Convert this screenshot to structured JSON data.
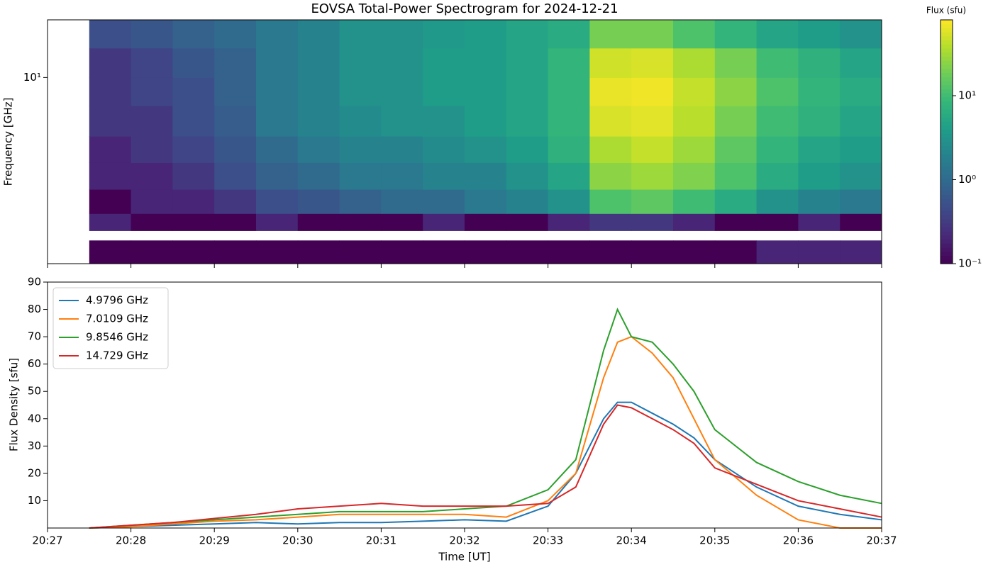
{
  "chart_data": [
    {
      "type": "heatmap",
      "title": "EOVSA Total-Power Spectrogram for 2024-12-21",
      "ylabel": "Frequency [GHz]",
      "ylog": true,
      "ylim": [
        1.5,
        18
      ],
      "yticks": [
        {
          "value": 10,
          "label": "10¹"
        }
      ],
      "xlim": [
        "20:27",
        "20:37"
      ],
      "xticks": [
        "20:27",
        "20:28",
        "20:29",
        "20:30",
        "20:31",
        "20:32",
        "20:33",
        "20:34",
        "20:35",
        "20:36",
        "20:37"
      ],
      "x_edges": [
        "20:27:30",
        "20:28:00",
        "20:28:30",
        "20:29:00",
        "20:29:30",
        "20:30:00",
        "20:30:30",
        "20:31:00",
        "20:31:30",
        "20:32:00",
        "20:32:30",
        "20:33:00",
        "20:33:30",
        "20:34:00",
        "20:34:30",
        "20:35:00",
        "20:35:30",
        "20:36:00",
        "20:36:30",
        "20:37:00"
      ],
      "y_edges": [
        1.5,
        1.9,
        2.1,
        2.5,
        3.2,
        4.2,
        5.5,
        7.5,
        10,
        13.5,
        18
      ],
      "values": [
        [
          0.1,
          0.1,
          0.1,
          0.1,
          0.1,
          0.1,
          0.1,
          0.1,
          0.1,
          0.1,
          0.1,
          0.1,
          0.1,
          0.1,
          0.1,
          0.1,
          0.2,
          0.2,
          0.2
        ],
        [
          null,
          null,
          null,
          null,
          null,
          null,
          null,
          null,
          null,
          null,
          null,
          null,
          null,
          null,
          null,
          null,
          null,
          null,
          null
        ],
        [
          0.2,
          0.1,
          0.1,
          0.1,
          0.2,
          0.1,
          0.1,
          0.1,
          0.2,
          0.1,
          0.1,
          0.2,
          0.3,
          0.3,
          0.2,
          0.1,
          0.1,
          0.2,
          0.1
        ],
        [
          0.1,
          0.2,
          0.2,
          0.3,
          0.5,
          0.6,
          0.8,
          1,
          1,
          1.5,
          2,
          3,
          12,
          15,
          10,
          6,
          3,
          2,
          1.5
        ],
        [
          0.2,
          0.2,
          0.3,
          0.5,
          0.8,
          1,
          1.5,
          1.5,
          2,
          2,
          3,
          5,
          25,
          30,
          22,
          12,
          6,
          4,
          3
        ],
        [
          0.2,
          0.3,
          0.4,
          0.6,
          1,
          1.5,
          2,
          2,
          2.5,
          3,
          4,
          7,
          35,
          45,
          30,
          15,
          8,
          5,
          4
        ],
        [
          0.3,
          0.3,
          0.5,
          0.7,
          1.5,
          2,
          2.5,
          3,
          3,
          4,
          5,
          8,
          55,
          60,
          40,
          20,
          10,
          7,
          5
        ],
        [
          0.3,
          0.4,
          0.5,
          0.8,
          1.5,
          2,
          3,
          3,
          4,
          4,
          5,
          8,
          65,
          70,
          45,
          25,
          12,
          8,
          6
        ],
        [
          0.3,
          0.4,
          0.6,
          0.8,
          1.5,
          2,
          3,
          3,
          4,
          4,
          5,
          8,
          50,
          55,
          35,
          20,
          10,
          7,
          5
        ],
        [
          0.5,
          0.6,
          0.8,
          1,
          1.5,
          2,
          3,
          3,
          3.5,
          4,
          5,
          6,
          20,
          20,
          12,
          8,
          5,
          4,
          3
        ]
      ],
      "colormap": "viridis",
      "colorbar_label": "Flux (sfu)",
      "clim": [
        0.1,
        80
      ],
      "cticks": [
        {
          "value": 0.1,
          "label": "10⁻¹"
        },
        {
          "value": 1,
          "label": "10⁰"
        },
        {
          "value": 10,
          "label": "10¹"
        }
      ]
    },
    {
      "type": "line",
      "xlabel": "Time [UT]",
      "ylabel": "Flux Density [sfu]",
      "xlim": [
        "20:27",
        "20:37"
      ],
      "xticks": [
        "20:27",
        "20:28",
        "20:29",
        "20:30",
        "20:31",
        "20:32",
        "20:33",
        "20:34",
        "20:35",
        "20:36",
        "20:37"
      ],
      "ylim": [
        0,
        90
      ],
      "yticks": [
        10,
        20,
        30,
        40,
        50,
        60,
        70,
        80,
        90
      ],
      "legend": "upper left",
      "x": [
        "20:27:30",
        "20:28:00",
        "20:28:30",
        "20:29:00",
        "20:29:30",
        "20:30:00",
        "20:30:30",
        "20:31:00",
        "20:31:30",
        "20:32:00",
        "20:32:30",
        "20:33:00",
        "20:33:20",
        "20:33:40",
        "20:33:50",
        "20:34:00",
        "20:34:15",
        "20:34:30",
        "20:34:45",
        "20:35:00",
        "20:35:30",
        "20:36:00",
        "20:36:30",
        "20:37:00"
      ],
      "series": [
        {
          "name": "4.9796 GHz",
          "color": "#1f77b4",
          "values": [
            0,
            0.5,
            1,
            1.5,
            2,
            1.5,
            2,
            2,
            2.5,
            3,
            2.5,
            8,
            20,
            40,
            46,
            46,
            42,
            38,
            33,
            25,
            15,
            8,
            5,
            3
          ]
        },
        {
          "name": "7.0109 GHz",
          "color": "#ff7f0e",
          "values": [
            0,
            0.5,
            1.5,
            2.5,
            3,
            4,
            5,
            5,
            5,
            5,
            4,
            10,
            20,
            55,
            68,
            70,
            64,
            55,
            40,
            25,
            12,
            3,
            0,
            0
          ]
        },
        {
          "name": "9.8546 GHz",
          "color": "#2ca02c",
          "values": [
            0,
            1,
            2,
            3,
            4,
            5,
            6,
            6,
            6,
            7,
            8,
            14,
            25,
            65,
            80,
            70,
            68,
            60,
            50,
            36,
            24,
            17,
            12,
            9
          ]
        },
        {
          "name": "14.729 GHz",
          "color": "#d62728",
          "values": [
            0,
            1,
            2,
            3.5,
            5,
            7,
            8,
            9,
            8,
            8,
            8,
            9,
            15,
            38,
            45,
            44,
            40,
            36,
            31,
            22,
            16,
            10,
            7,
            4
          ]
        }
      ]
    }
  ]
}
